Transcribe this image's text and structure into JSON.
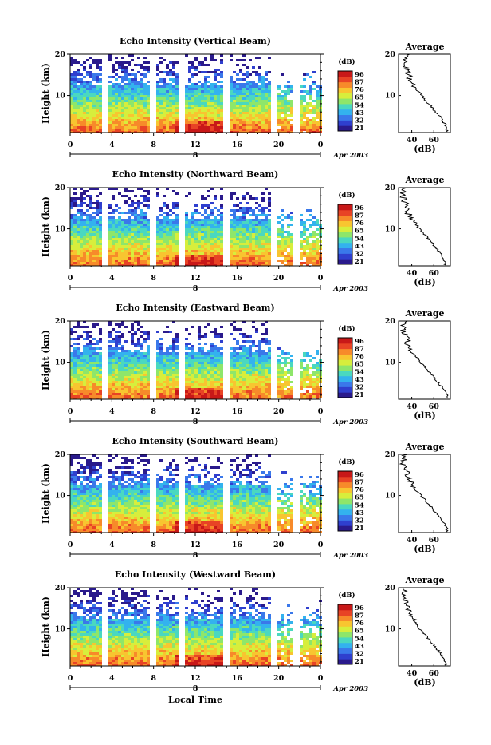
{
  "xlabel": "Local Time",
  "colorbar": {
    "unit": "(dB)",
    "ticks": [
      "96",
      "87",
      "76",
      "65",
      "54",
      "43",
      "32",
      "21"
    ],
    "colors": [
      "#2a1a8c",
      "#2f3fce",
      "#3a78ea",
      "#33b2ee",
      "#4ad8c0",
      "#8ee66a",
      "#d7ee3c",
      "#f8c530",
      "#f78a2a",
      "#e84325",
      "#c81818"
    ]
  },
  "date_label": "Apr 2003",
  "day_label": "8",
  "x_ticks": [
    "0",
    "4",
    "8",
    "12",
    "16",
    "20",
    "0"
  ],
  "y_ticks": [
    "20",
    "10"
  ],
  "avg": {
    "title": "Average",
    "unit": "(dB)",
    "x_ticks": [
      "40",
      "60"
    ]
  },
  "chart_data": [
    {
      "type": "heatmap",
      "title": "Echo Intensity (Vertical Beam)",
      "ylabel": "Height (km)",
      "xlabel": "",
      "xlim": [
        0,
        24
      ],
      "ylim": [
        1,
        20
      ],
      "zlim": [
        21,
        96
      ],
      "profile": {
        "title": "Average",
        "xlabel": "(dB)",
        "height_km": [
          2,
          4,
          6,
          8,
          10,
          12,
          14,
          16,
          18,
          20
        ],
        "mean_db": [
          72,
          68,
          62,
          55,
          49,
          43,
          38,
          36,
          33,
          35
        ]
      }
    },
    {
      "type": "heatmap",
      "title": "Echo Intensity (Northward Beam)",
      "ylabel": "Height (km)",
      "xlabel": "",
      "xlim": [
        0,
        24
      ],
      "ylim": [
        1,
        20
      ],
      "zlim": [
        21,
        96
      ],
      "profile": {
        "title": "Average",
        "xlabel": "(dB)",
        "height_km": [
          2,
          4,
          6,
          8,
          10,
          12,
          14,
          16,
          18,
          20
        ],
        "mean_db": [
          70,
          66,
          60,
          54,
          47,
          42,
          36,
          34,
          32,
          33
        ]
      }
    },
    {
      "type": "heatmap",
      "title": "Echo Intensity (Eastward Beam)",
      "ylabel": "Height (km)",
      "xlabel": "",
      "xlim": [
        0,
        24
      ],
      "ylim": [
        1,
        20
      ],
      "zlim": [
        21,
        96
      ],
      "profile": {
        "title": "Average",
        "xlabel": "(dB)",
        "height_km": [
          2,
          4,
          6,
          8,
          10,
          12,
          14,
          16,
          18,
          20
        ],
        "mean_db": [
          72,
          67,
          61,
          55,
          48,
          42,
          37,
          35,
          32,
          33
        ]
      }
    },
    {
      "type": "heatmap",
      "title": "Echo Intensity (Southward Beam)",
      "ylabel": "Height (km)",
      "xlabel": "",
      "xlim": [
        0,
        24
      ],
      "ylim": [
        1,
        20
      ],
      "zlim": [
        21,
        96
      ],
      "profile": {
        "title": "Average",
        "xlabel": "(dB)",
        "height_km": [
          2,
          4,
          6,
          8,
          10,
          12,
          14,
          16,
          18,
          20
        ],
        "mean_db": [
          72,
          67,
          61,
          55,
          48,
          42,
          37,
          35,
          32,
          34
        ]
      }
    },
    {
      "type": "heatmap",
      "title": "Echo Intensity (Westward Beam)",
      "ylabel": "Height (km)",
      "xlabel": "",
      "xlim": [
        0,
        24
      ],
      "ylim": [
        1,
        20
      ],
      "zlim": [
        21,
        96
      ],
      "profile": {
        "title": "Average",
        "xlabel": "(dB)",
        "height_km": [
          2,
          4,
          6,
          8,
          10,
          12,
          14,
          16,
          18,
          20
        ],
        "mean_db": [
          71,
          66,
          60,
          54,
          47,
          42,
          37,
          35,
          32,
          33
        ]
      }
    }
  ]
}
